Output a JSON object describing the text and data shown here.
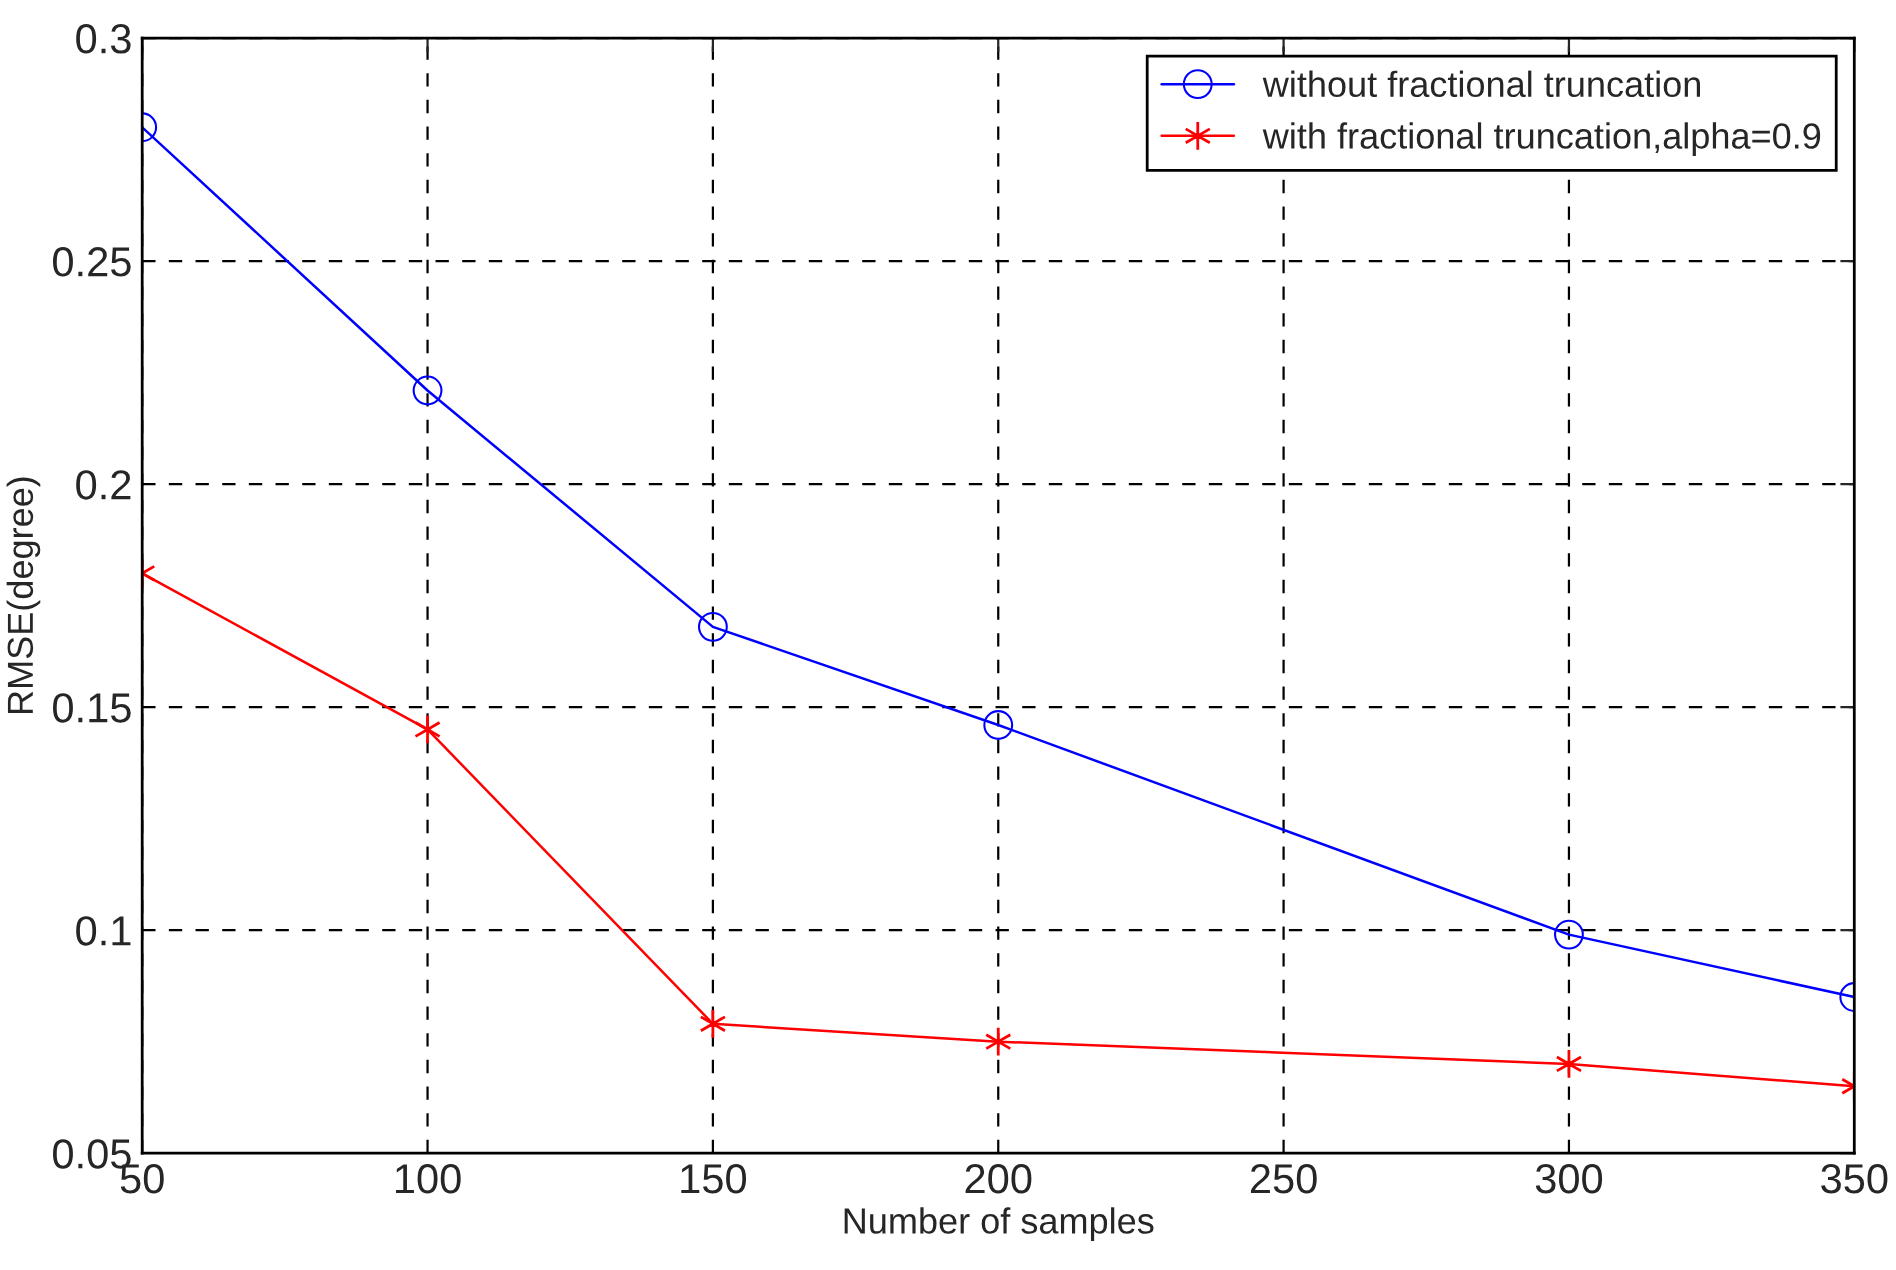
{
  "chart_data": {
    "type": "line",
    "xlabel": "Number of samples",
    "ylabel": "RMSE(degree)",
    "x": [
      50,
      100,
      150,
      200,
      300,
      350
    ],
    "series": [
      {
        "name": "without fractional truncation",
        "color": "#0000ff",
        "marker": "circle",
        "values": [
          0.28,
          0.221,
          0.168,
          0.146,
          0.099,
          0.085
        ]
      },
      {
        "name": "with fractional truncation,alpha=0.9",
        "color": "#ff0000",
        "marker": "cross",
        "values": [
          0.18,
          0.145,
          0.079,
          0.075,
          0.07,
          0.065
        ]
      }
    ],
    "xlim": [
      50,
      350
    ],
    "xticks": [
      50,
      100,
      150,
      200,
      250,
      300,
      350
    ],
    "ylim": [
      0.05,
      0.3
    ],
    "yticks": [
      0.05,
      0.1,
      0.15,
      0.2,
      0.25,
      0.3
    ],
    "grid": true,
    "line_style": "solid",
    "legend": "top right"
  }
}
